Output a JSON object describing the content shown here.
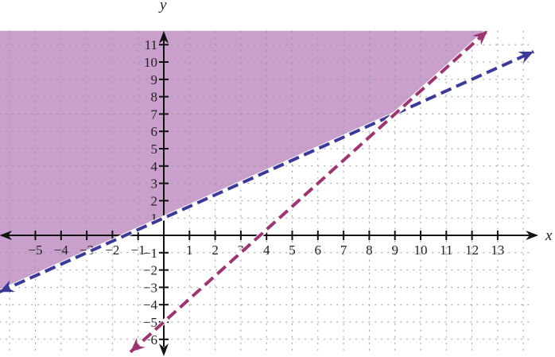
{
  "chart_data": {
    "type": "line",
    "xlabel": "x",
    "ylabel": "y",
    "xlim": [
      -6.4,
      14.4
    ],
    "ylim": [
      -6.7,
      11.8
    ],
    "x_ticks": [
      -5,
      -4,
      -3,
      -2,
      -1,
      1,
      2,
      3,
      4,
      5,
      6,
      7,
      8,
      9,
      10,
      11,
      12,
      13
    ],
    "y_ticks": [
      -6,
      -5,
      -4,
      -3,
      -2,
      -1,
      1,
      2,
      3,
      4,
      5,
      6,
      7,
      8,
      9,
      10,
      11
    ],
    "grid": true,
    "series": [
      {
        "equation_slope": 0.6667,
        "equation_intercept": 1,
        "style": "dashed",
        "color": "#3b3a9a",
        "x_range": [
          -6.4,
          14.4
        ]
      },
      {
        "equation_slope": 1.3333,
        "equation_intercept": -5,
        "style": "dashed",
        "color": "#9e3571",
        "x_range": [
          -1.3,
          12.6
        ]
      }
    ],
    "shaded_region": {
      "description_rule": "y > 2/3 x + 1 and y > 4/3 x - 5",
      "color": "#c9a0cc"
    },
    "intersection": [
      9,
      7
    ]
  }
}
